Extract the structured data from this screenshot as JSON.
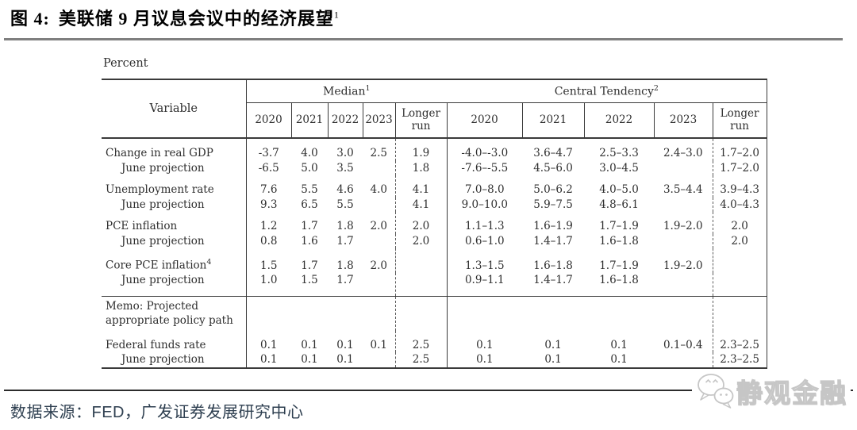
{
  "title": {
    "prefix": "图 4:",
    "text": "美联储 9 月议息会议中的经济展望",
    "sup": "1"
  },
  "percent_label": "Percent",
  "table": {
    "variable_header": "Variable",
    "groups": [
      {
        "label": "Median",
        "sup": "1"
      },
      {
        "label": "Central Tendency",
        "sup": "2"
      }
    ],
    "years": [
      "2020",
      "2021",
      "2022",
      "2023"
    ],
    "longer_run": {
      "line1": "Longer",
      "line2": "run"
    },
    "rows": [
      {
        "type": "first",
        "label": "Change in real GDP",
        "sup": "",
        "median": [
          "-3.7",
          "4.0",
          "3.0",
          "2.5"
        ],
        "mlonger": "1.9",
        "ct": [
          "-4.0–-3.0",
          "3.6–4.7",
          "2.5–3.3",
          "2.4–3.0"
        ],
        "ctlonger": "1.7–2.0"
      },
      {
        "type": "second",
        "label": "June projection",
        "sup": "",
        "median": [
          "-6.5",
          "5.0",
          "3.5",
          ""
        ],
        "mlonger": "1.8",
        "ct": [
          "-7.6–-5.5",
          "4.5–6.0",
          "3.0–4.5",
          ""
        ],
        "ctlonger": "1.7–2.0"
      },
      {
        "type": "first",
        "label": "Unemployment rate",
        "sup": "",
        "median": [
          "7.6",
          "5.5",
          "4.6",
          "4.0"
        ],
        "mlonger": "4.1",
        "ct": [
          "7.0–8.0",
          "5.0–6.2",
          "4.0–5.0",
          "3.5–4.4"
        ],
        "ctlonger": "3.9–4.3"
      },
      {
        "type": "second",
        "label": "June projection",
        "sup": "",
        "median": [
          "9.3",
          "6.5",
          "5.5",
          ""
        ],
        "mlonger": "4.1",
        "ct": [
          "9.0–10.0",
          "5.9–7.5",
          "4.8–6.1",
          ""
        ],
        "ctlonger": "4.0–4.3"
      },
      {
        "type": "first",
        "label": "PCE inflation",
        "sup": "",
        "median": [
          "1.2",
          "1.7",
          "1.8",
          "2.0"
        ],
        "mlonger": "2.0",
        "ct": [
          "1.1–1.3",
          "1.6–1.9",
          "1.7–1.9",
          "1.9–2.0"
        ],
        "ctlonger": "2.0"
      },
      {
        "type": "second",
        "label": "June projection",
        "sup": "",
        "median": [
          "0.8",
          "1.6",
          "1.7",
          ""
        ],
        "mlonger": "2.0",
        "ct": [
          "0.6–1.0",
          "1.4–1.7",
          "1.6–1.8",
          ""
        ],
        "ctlonger": "2.0"
      },
      {
        "type": "first",
        "label": "Core PCE inflation",
        "sup": "4",
        "median": [
          "1.5",
          "1.7",
          "1.8",
          "2.0"
        ],
        "mlonger": "",
        "ct": [
          "1.3–1.5",
          "1.6–1.8",
          "1.7–1.9",
          "1.9–2.0"
        ],
        "ctlonger": ""
      },
      {
        "type": "second prememo",
        "label": "June projection",
        "sup": "",
        "median": [
          "1.0",
          "1.5",
          "1.7",
          ""
        ],
        "mlonger": "",
        "ct": [
          "0.9–1.1",
          "1.4–1.7",
          "1.6–1.8",
          ""
        ],
        "ctlonger": ""
      },
      {
        "type": "memo",
        "lines": [
          "Memo: Projected",
          "appropriate policy path"
        ],
        "median": [
          "",
          "",
          "",
          ""
        ],
        "mlonger": "",
        "ct": [
          "",
          "",
          "",
          ""
        ],
        "ctlonger": ""
      },
      {
        "type": "first",
        "label": "Federal funds rate",
        "sup": "",
        "median": [
          "0.1",
          "0.1",
          "0.1",
          "0.1"
        ],
        "mlonger": "2.5",
        "ct": [
          "0.1",
          "0.1",
          "0.1",
          "0.1–0.4"
        ],
        "ctlonger": "2.3–2.5"
      },
      {
        "type": "second",
        "label": "June projection",
        "sup": "",
        "median": [
          "0.1",
          "0.1",
          "0.1",
          ""
        ],
        "mlonger": "2.5",
        "ct": [
          "0.1",
          "0.1",
          "0.1",
          ""
        ],
        "ctlonger": "2.3–2.5"
      }
    ]
  },
  "source": {
    "text": "数据来源：FED，广发证券发展研究中心"
  },
  "watermark": {
    "text": "静观金融",
    "icon": "wechat-icon"
  },
  "colors": {
    "page_bg": "#ffffff",
    "title_text": "#000000",
    "title_rule": "#7f7f7f",
    "table_border": "#3a3a3a",
    "table_text": "#2f2f2f",
    "bottom_rule": "#2c2c2c",
    "source_text": "#2e3f50",
    "watermark": "#c6c6c6"
  }
}
